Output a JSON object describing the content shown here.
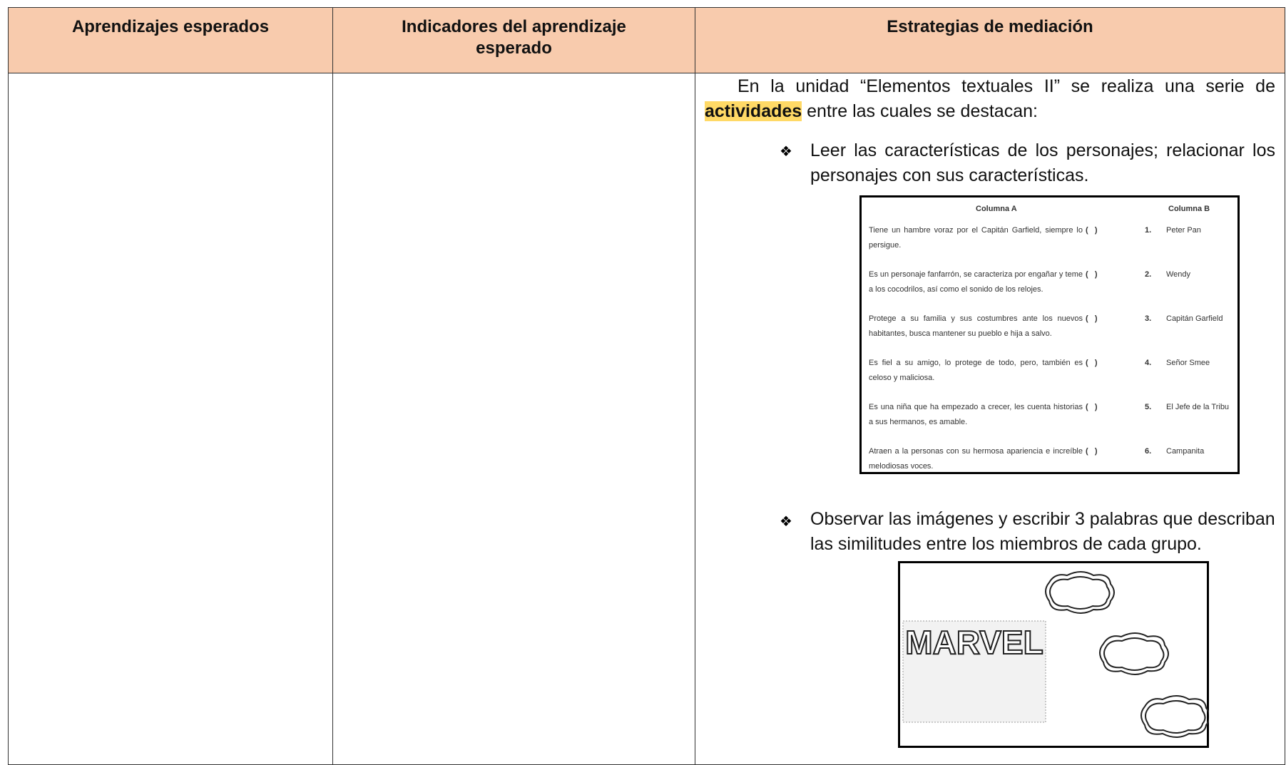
{
  "table": {
    "headers": [
      "Aprendizajes esperados",
      "Indicadores del aprendizaje esperado",
      "Estrategias de mediación"
    ],
    "intro": {
      "before": "En la unidad “Elementos textuales II” se realiza una serie de",
      "highlight": "actividades",
      "after": "entre las cuales se destacan:"
    },
    "bullets": [
      "Leer las características de los personajes; relacionar los personajes con sus características.",
      "Observar las imágenes y escribir 3 palabras que describan las similitudes entre los miembros de cada grupo."
    ],
    "matching": {
      "headers": [
        "Columna A",
        "Columna B"
      ],
      "rows": [
        {
          "description": "Tiene un hambre voraz por el Capitán Garfield, siempre lo persigue.",
          "blank": "(   )",
          "number": "1.",
          "name": "Peter Pan"
        },
        {
          "description": "Es un personaje fanfarrón, se caracteriza por engañar y teme a los cocodrilos, así como el sonido de los relojes.",
          "blank": "(   )",
          "number": "2.",
          "name": "Wendy"
        },
        {
          "description": "Protege a su familia y sus costumbres ante los nuevos habitantes, busca mantener su pueblo e hija a salvo.",
          "blank": "(   )",
          "number": "3.",
          "name": "Capitán Garfield"
        },
        {
          "description": "Es fiel a su amigo, lo protege de todo, pero, también es celoso y maliciosa.",
          "blank": "(   )",
          "number": "4.",
          "name": "Señor Smee"
        },
        {
          "description": "Es una niña que ha empezado a crecer, les cuenta historias a sus hermanos, es amable.",
          "blank": "(   )",
          "number": "5.",
          "name": "El Jefe de la Tribu"
        },
        {
          "description": "Atraen a la personas con su hermosa apariencia e increíble melodiosas voces.",
          "blank": "(   )",
          "number": "6.",
          "name": "Campanita"
        }
      ]
    },
    "image_text": "MARVEL"
  }
}
